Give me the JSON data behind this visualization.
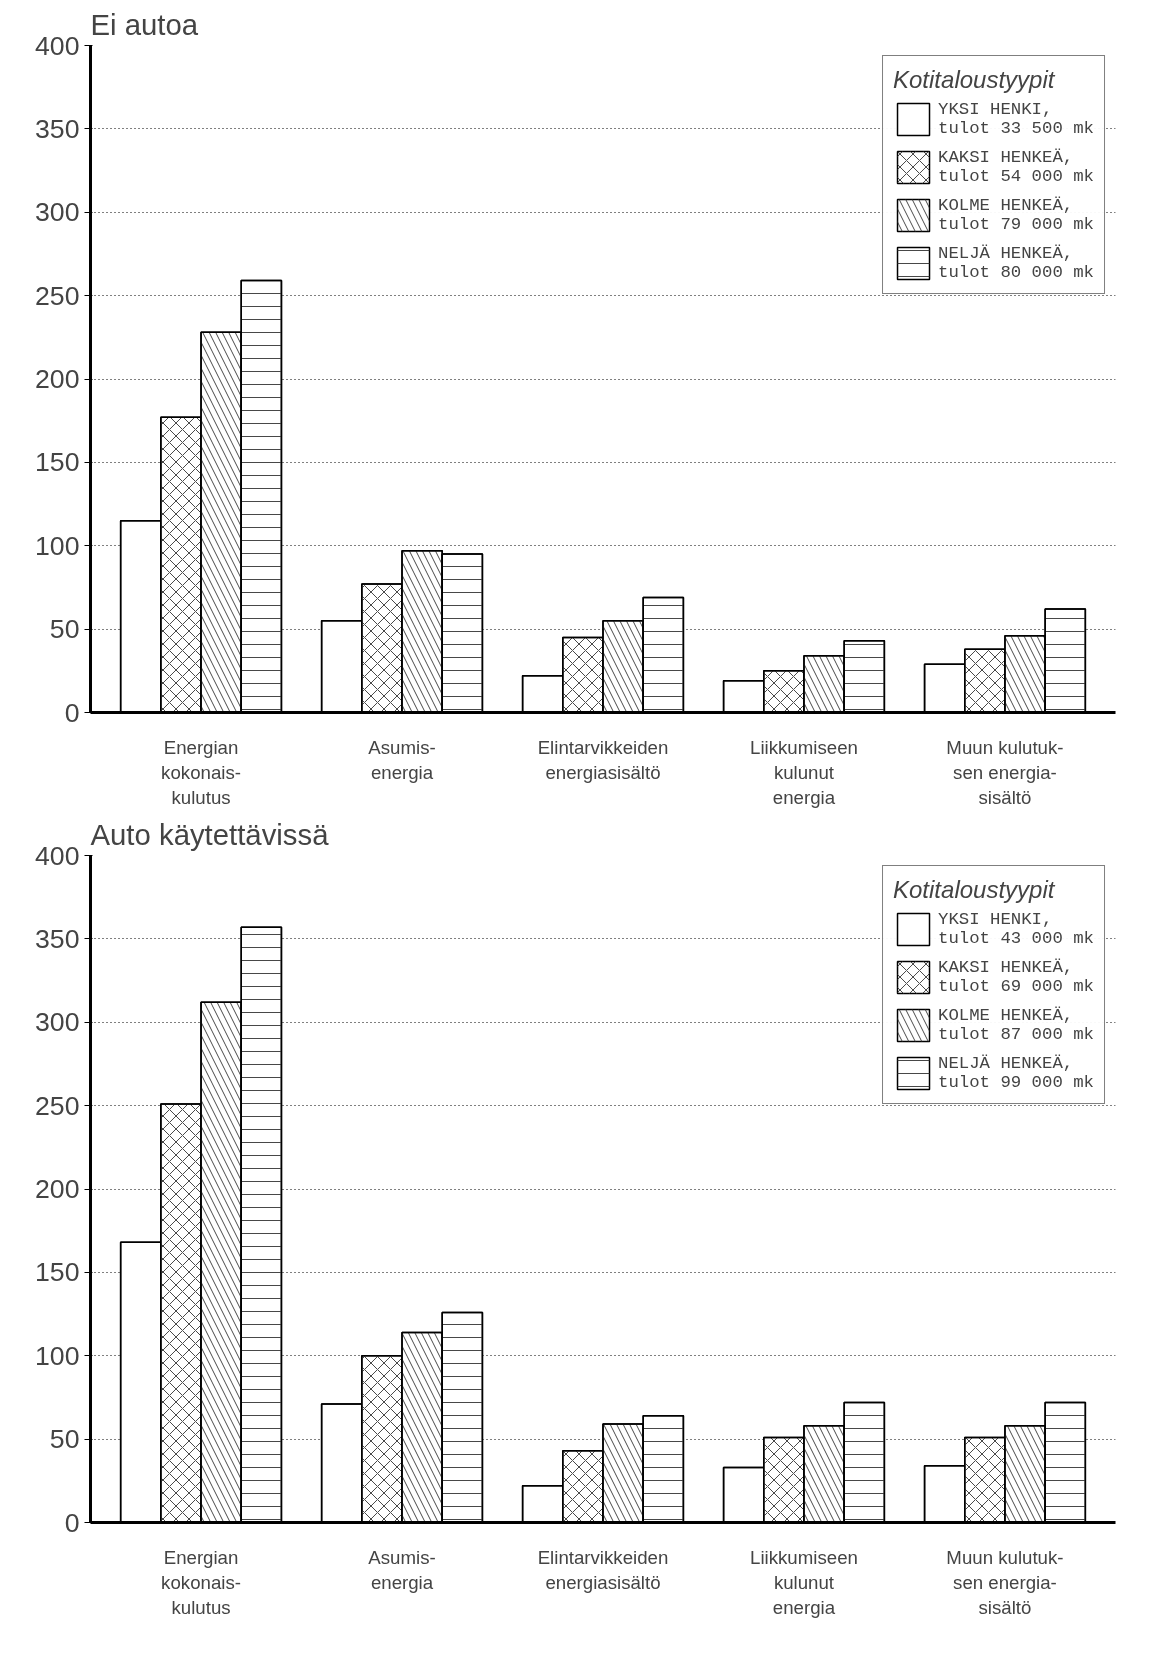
{
  "chart_data": [
    {
      "type": "bar",
      "title": "Ei autoa",
      "legend_title": "Kotitaloustyypit",
      "categories": [
        "Energian\nkokonais-\nkulutus",
        "Asumis-\nenergia",
        "Elintarvikkeiden\nenergiasisältö",
        "Liikkumiseen\nkulunut\nenergia",
        "Muun kulutuk-\nsen energia-\nsisältö"
      ],
      "series": [
        {
          "name": "YKSI HENKI,\ntulot 33 500 mk",
          "color": "#ffffff",
          "values": [
            115,
            55,
            22,
            19,
            29
          ]
        },
        {
          "name": "KAKSI HENKEÄ,\ntulot 54 000 mk",
          "color": "#ffffff",
          "values": [
            177,
            77,
            45,
            25,
            38
          ]
        },
        {
          "name": "KOLME HENKEÄ,\ntulot 79 000 mk",
          "color": "#ffffff",
          "values": [
            228,
            97,
            55,
            34,
            46
          ]
        },
        {
          "name": "NELJÄ HENKEÄ,\ntulot 80 000 mk",
          "color": "#ffffff",
          "values": [
            259,
            95,
            69,
            43,
            62
          ]
        }
      ],
      "ylim": [
        0,
        400
      ],
      "yticks": [
        0,
        50,
        100,
        150,
        200,
        250,
        300,
        350,
        400
      ],
      "grid": "y",
      "legend": "top right"
    },
    {
      "type": "bar",
      "title": "Auto käytettävissä",
      "legend_title": "Kotitaloustyypit",
      "categories": [
        "Energian\nkokonais-\nkulutus",
        "Asumis-\nenergia",
        "Elintarvikkeiden\nenergiasisältö",
        "Liikkumiseen\nkulunut\nenergia",
        "Muun kulutuk-\nsen energia-\nsisältö"
      ],
      "series": [
        {
          "name": "YKSI HENKI,\ntulot 43 000 mk",
          "color": "#ffffff",
          "values": [
            168,
            71,
            22,
            33,
            34
          ]
        },
        {
          "name": "KAKSI HENKEÄ,\ntulot 69 000 mk",
          "color": "#ffffff",
          "values": [
            251,
            100,
            43,
            51,
            51
          ]
        },
        {
          "name": "KOLME HENKEÄ,\ntulot 87 000 mk",
          "color": "#ffffff",
          "values": [
            312,
            114,
            59,
            58,
            58
          ]
        },
        {
          "name": "NELJÄ HENKEÄ,\ntulot 99 000 mk",
          "color": "#ffffff",
          "values": [
            357,
            126,
            64,
            72,
            72
          ]
        }
      ],
      "ylim": [
        0,
        400
      ],
      "yticks": [
        0,
        50,
        100,
        150,
        200,
        250,
        300,
        350,
        400
      ],
      "grid": "y",
      "legend": "top right"
    }
  ]
}
